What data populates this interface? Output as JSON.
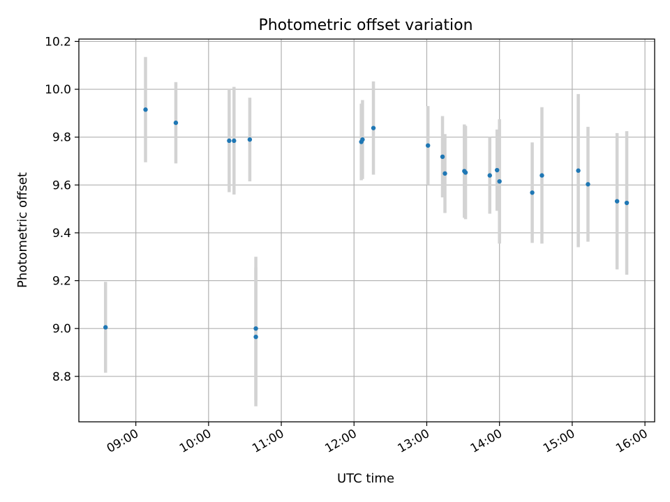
{
  "chart_data": {
    "type": "scatter",
    "title": "Photometric offset variation",
    "xlabel": "UTC time",
    "ylabel": "Photometric offset",
    "x_ticks": [
      "09:00",
      "10:00",
      "11:00",
      "12:00",
      "13:00",
      "14:00",
      "15:00",
      "16:00"
    ],
    "y_ticks": [
      "8.8",
      "9.0",
      "9.2",
      "9.4",
      "9.6",
      "9.8",
      "10.0",
      "10.2"
    ],
    "xlim": [
      "08:13",
      "16:08"
    ],
    "ylim": [
      8.61,
      10.21
    ],
    "grid": true,
    "marker_color": "#1f77b4",
    "errorbar_color": "#d3d3d3",
    "points": [
      {
        "time": "08:35",
        "y": 9.005,
        "err": 0.19
      },
      {
        "time": "09:08",
        "y": 9.915,
        "err": 0.22
      },
      {
        "time": "09:33",
        "y": 9.86,
        "err": 0.17
      },
      {
        "time": "10:17",
        "y": 9.785,
        "err": 0.215
      },
      {
        "time": "10:21",
        "y": 9.785,
        "err": 0.225
      },
      {
        "time": "10:34",
        "y": 9.79,
        "err": 0.175
      },
      {
        "time": "10:39",
        "y": 9.0,
        "err": 0.3
      },
      {
        "time": "10:39",
        "y": 8.965,
        "err": 0.29
      },
      {
        "time": "12:06",
        "y": 9.78,
        "err": 0.16
      },
      {
        "time": "12:07",
        "y": 9.79,
        "err": 0.165
      },
      {
        "time": "12:16",
        "y": 9.838,
        "err": 0.195
      },
      {
        "time": "13:01",
        "y": 9.765,
        "err": 0.165
      },
      {
        "time": "13:13",
        "y": 9.718,
        "err": 0.17
      },
      {
        "time": "13:15",
        "y": 9.648,
        "err": 0.165
      },
      {
        "time": "13:31",
        "y": 9.658,
        "err": 0.195
      },
      {
        "time": "13:32",
        "y": 9.652,
        "err": 0.195
      },
      {
        "time": "13:52",
        "y": 9.64,
        "err": 0.16
      },
      {
        "time": "13:58",
        "y": 9.662,
        "err": 0.17
      },
      {
        "time": "14:00",
        "y": 9.615,
        "err": 0.26
      },
      {
        "time": "14:27",
        "y": 9.568,
        "err": 0.21
      },
      {
        "time": "14:35",
        "y": 9.64,
        "err": 0.285
      },
      {
        "time": "15:05",
        "y": 9.66,
        "err": 0.32
      },
      {
        "time": "15:13",
        "y": 9.603,
        "err": 0.24
      },
      {
        "time": "15:37",
        "y": 9.532,
        "err": 0.285
      },
      {
        "time": "15:45",
        "y": 9.525,
        "err": 0.3
      }
    ]
  }
}
